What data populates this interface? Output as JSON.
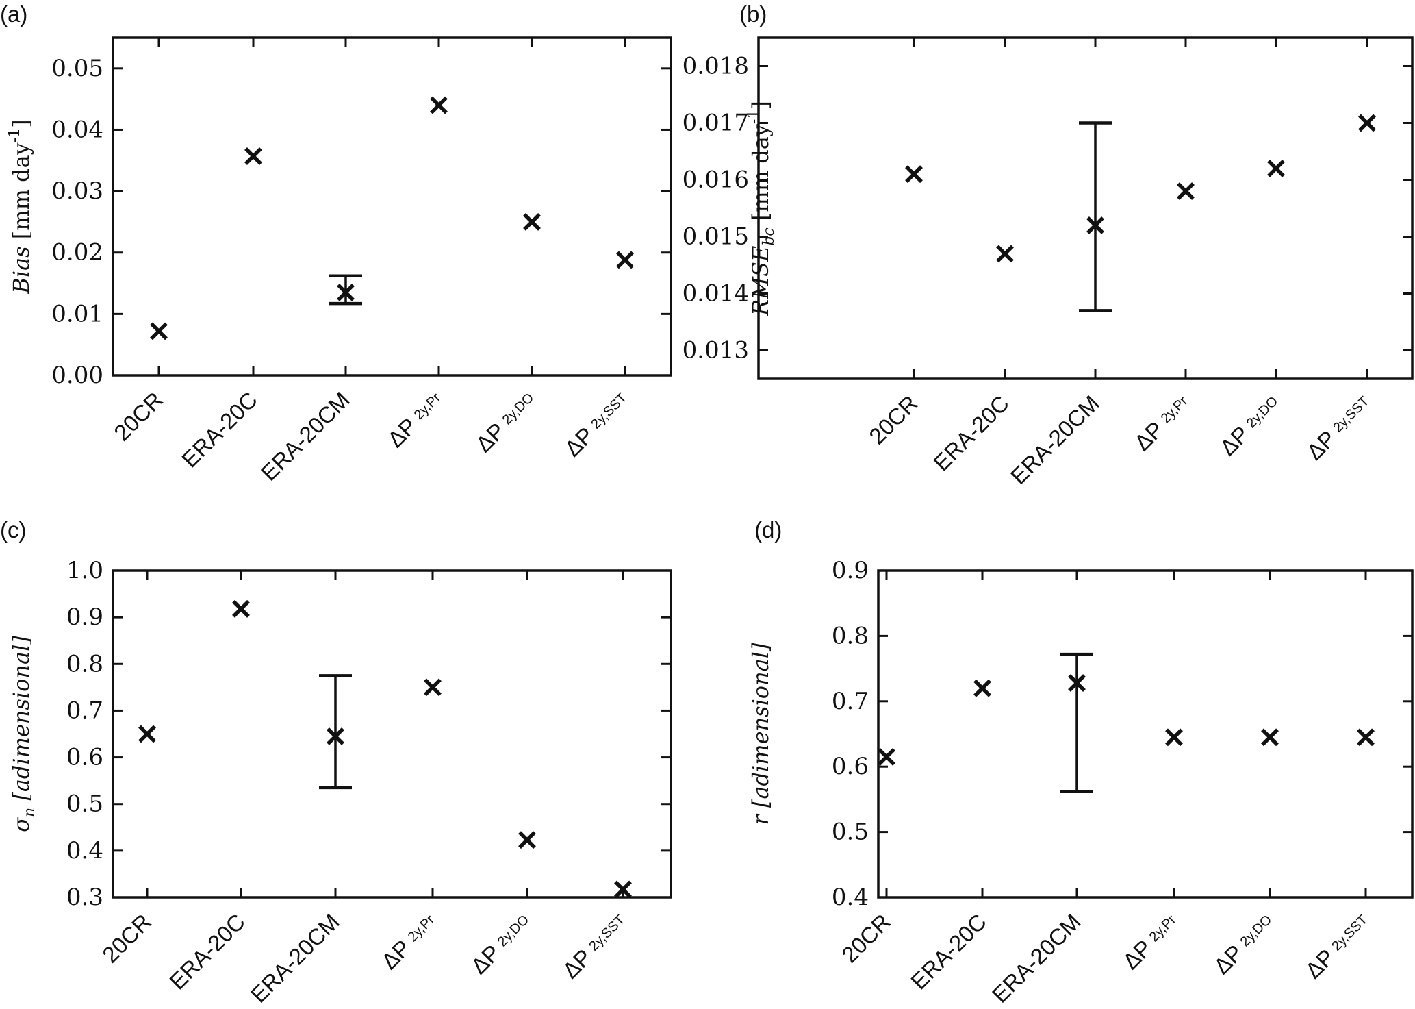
{
  "figure": {
    "categories": [
      "20CR",
      "ERA-20C",
      "ERA-20CM",
      "ΔP_2y,Pr",
      "ΔP_2y,DO",
      "ΔP_2y,SST"
    ]
  },
  "chart_data": [
    {
      "type": "scatter",
      "panel_label": "(a)",
      "title": "",
      "ylabel": {
        "main": "Bias",
        "unit": " [mm day",
        "sup": "-1",
        "close": "]"
      },
      "categories": [
        {
          "main": "20CR",
          "sub": ""
        },
        {
          "main": "ERA-20C",
          "sub": ""
        },
        {
          "main": "ERA-20CM",
          "sub": ""
        },
        {
          "main": "ΔP ",
          "sub": "2y,Pr"
        },
        {
          "main": "ΔP ",
          "sub": "2y,DO"
        },
        {
          "main": "ΔP ",
          "sub": "2y,SST"
        }
      ],
      "values": [
        0.0072,
        0.0357,
        0.0135,
        0.044,
        0.025,
        0.0188
      ],
      "error_bars": [
        null,
        null,
        [
          0.0117,
          0.0162
        ],
        null,
        null,
        null
      ],
      "ylim": [
        0.0,
        0.055
      ],
      "yticks": [
        0.0,
        0.01,
        0.02,
        0.03,
        0.04,
        0.05
      ],
      "ytick_labels": [
        "0.00",
        "0.01",
        "0.02",
        "0.03",
        "0.04",
        "0.05"
      ]
    },
    {
      "type": "scatter",
      "panel_label": "(b)",
      "title": "",
      "ylabel": {
        "main": "RMSE",
        "sub": "bc",
        "unit": " [mm day",
        "sup": "-1",
        "close": "]"
      },
      "categories": [
        {
          "main": "20CR",
          "sub": ""
        },
        {
          "main": "ERA-20C",
          "sub": ""
        },
        {
          "main": "ERA-20CM",
          "sub": ""
        },
        {
          "main": "ΔP ",
          "sub": "2y,Pr"
        },
        {
          "main": "ΔP ",
          "sub": "2y,DO"
        },
        {
          "main": "ΔP ",
          "sub": "2y,SST"
        }
      ],
      "values": [
        0.0161,
        0.0147,
        0.0152,
        0.0158,
        0.0162,
        0.017
      ],
      "error_bars": [
        null,
        null,
        [
          0.0137,
          0.017
        ],
        null,
        null,
        null
      ],
      "ylim": [
        0.0125,
        0.0185
      ],
      "yticks": [
        0.013,
        0.014,
        0.015,
        0.016,
        0.017,
        0.018
      ],
      "ytick_labels": [
        "0.013",
        "0.014",
        "0.015",
        "0.016",
        "0.017",
        "0.018"
      ]
    },
    {
      "type": "scatter",
      "panel_label": "(c)",
      "title": "",
      "ylabel": {
        "main": "σ",
        "sub": "n",
        "unit": " [adimensional]"
      },
      "categories": [
        {
          "main": "20CR",
          "sub": ""
        },
        {
          "main": "ERA-20C",
          "sub": ""
        },
        {
          "main": "ERA-20CM",
          "sub": ""
        },
        {
          "main": "ΔP ",
          "sub": "2y,Pr"
        },
        {
          "main": "ΔP ",
          "sub": "2y,DO"
        },
        {
          "main": "ΔP ",
          "sub": "2y,SST"
        }
      ],
      "values": [
        0.65,
        0.918,
        0.645,
        0.75,
        0.423,
        0.317
      ],
      "error_bars": [
        null,
        null,
        [
          0.535,
          0.775
        ],
        null,
        null,
        null
      ],
      "ylim": [
        0.3,
        1.0
      ],
      "yticks": [
        0.3,
        0.4,
        0.5,
        0.6,
        0.7,
        0.8,
        0.9,
        1.0
      ],
      "ytick_labels": [
        "0.3",
        "0.4",
        "0.5",
        "0.6",
        "0.7",
        "0.8",
        "0.9",
        "1.0"
      ]
    },
    {
      "type": "scatter",
      "panel_label": "(d)",
      "title": "",
      "ylabel": {
        "main": "r",
        "unit": " [adimensional]"
      },
      "categories": [
        {
          "main": "20CR",
          "sub": ""
        },
        {
          "main": "ERA-20C",
          "sub": ""
        },
        {
          "main": "ERA-20CM",
          "sub": ""
        },
        {
          "main": "ΔP ",
          "sub": "2y,Pr"
        },
        {
          "main": "ΔP ",
          "sub": "2y,DO"
        },
        {
          "main": "ΔP ",
          "sub": "2y,SST"
        }
      ],
      "values": [
        0.615,
        0.72,
        0.728,
        0.645,
        0.645,
        0.645
      ],
      "error_bars": [
        null,
        null,
        [
          0.562,
          0.772
        ],
        null,
        null,
        null
      ],
      "ylim": [
        0.4,
        0.9
      ],
      "yticks": [
        0.4,
        0.5,
        0.6,
        0.7,
        0.8,
        0.9
      ],
      "ytick_labels": [
        "0.4",
        "0.5",
        "0.6",
        "0.7",
        "0.8",
        "0.9"
      ]
    }
  ]
}
